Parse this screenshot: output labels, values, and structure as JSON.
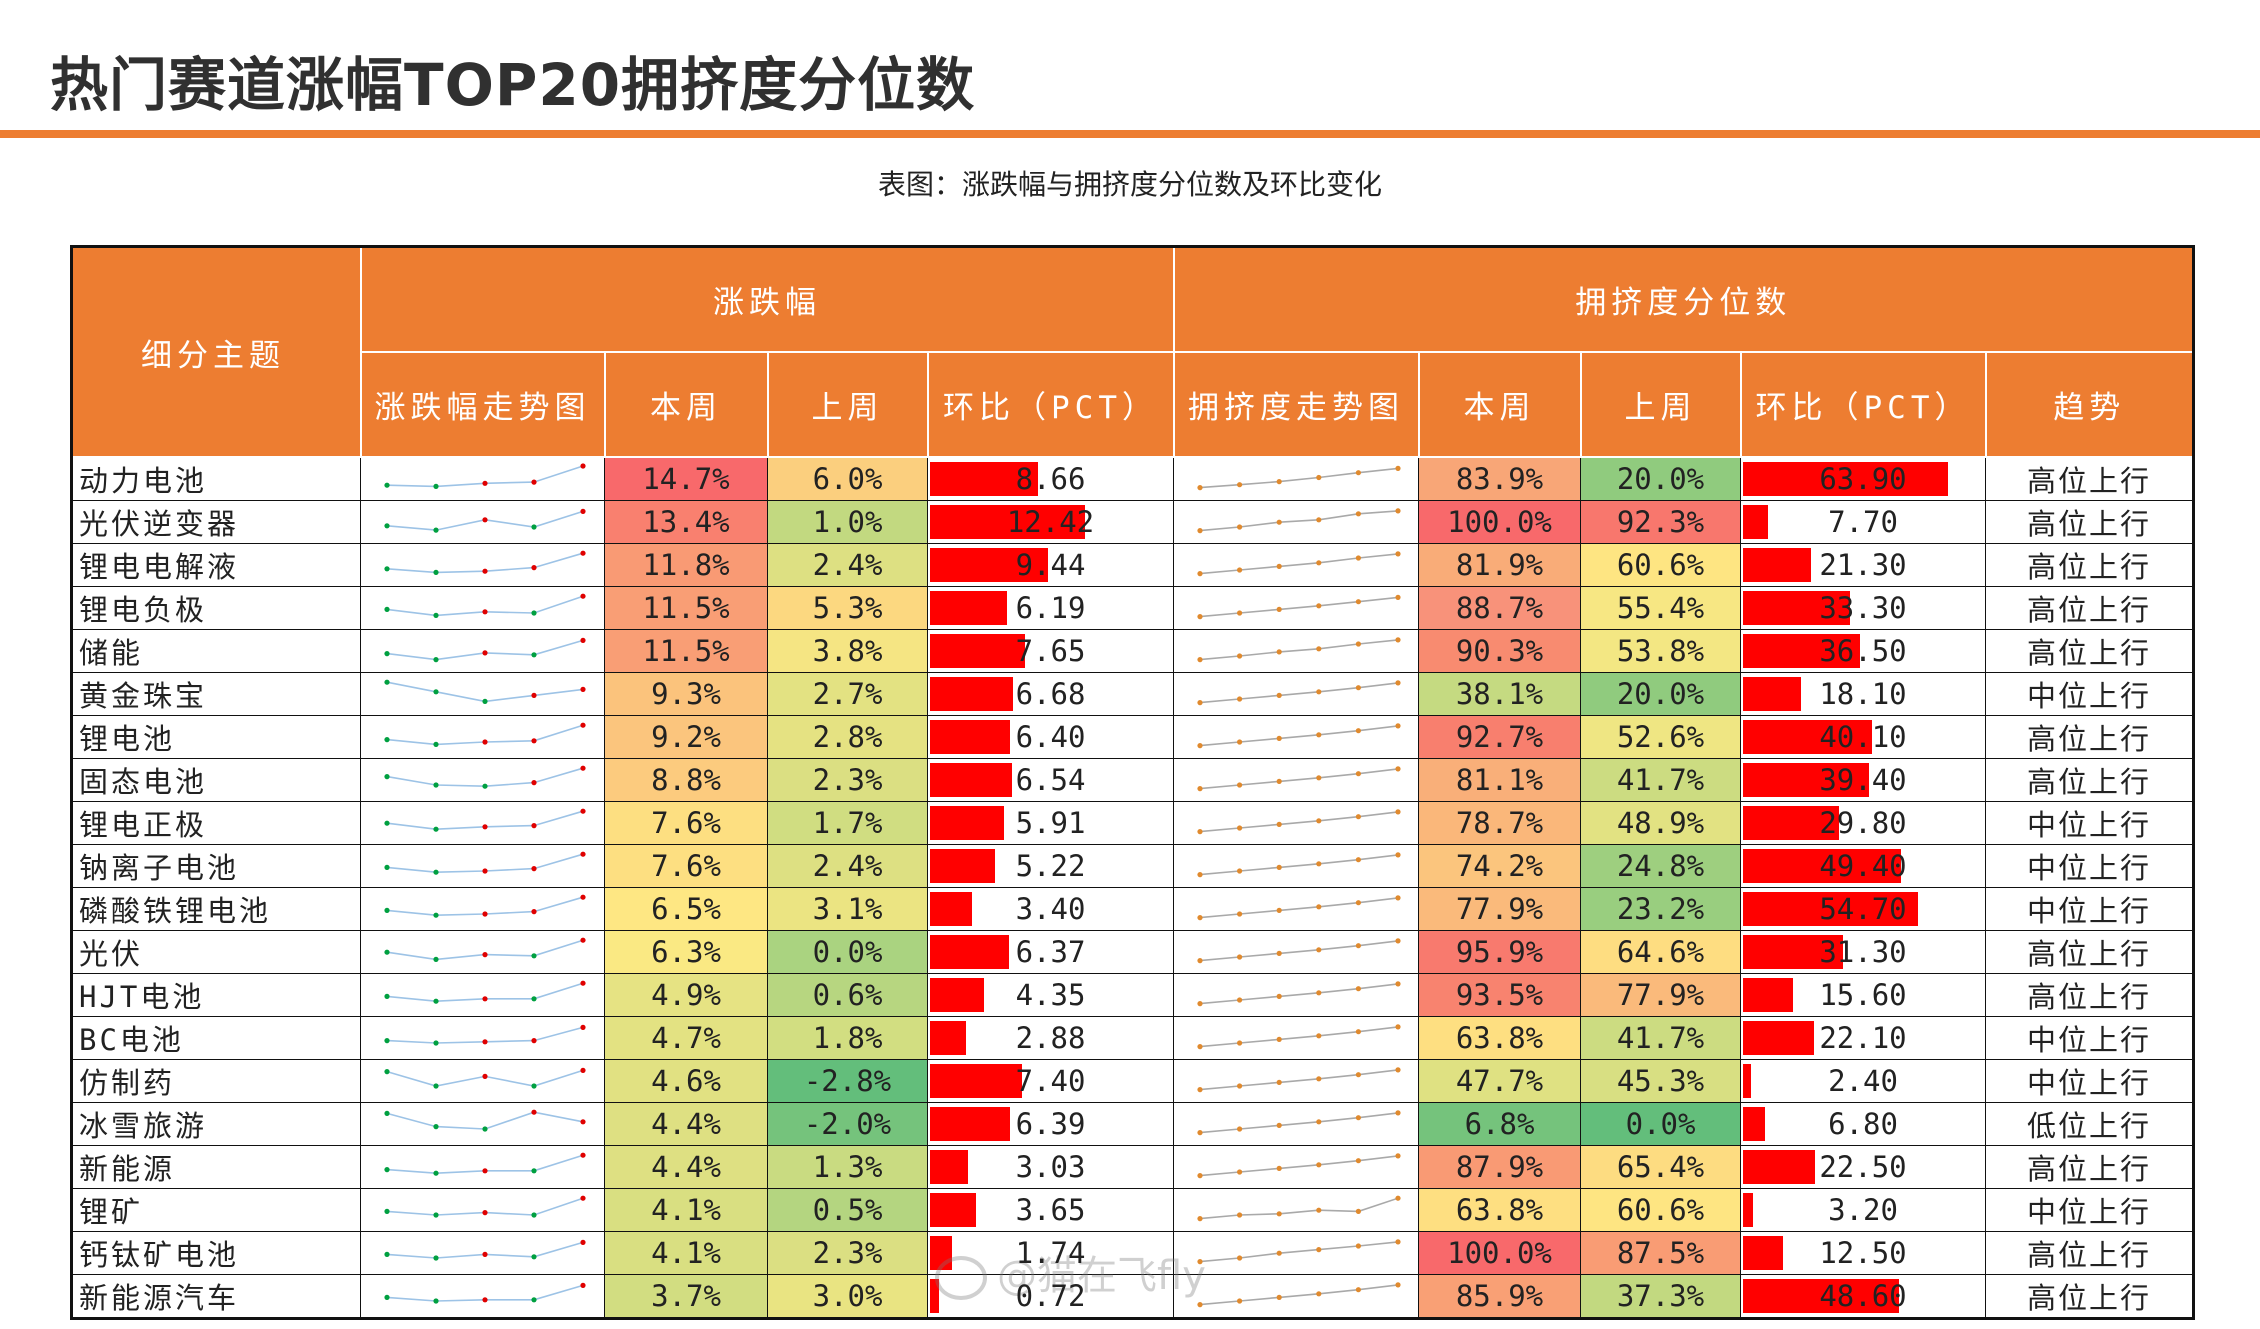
{
  "title": "热门赛道涨幅TOP20拥挤度分位数",
  "caption": "表图：涨跌幅与拥挤度分位数及环比变化",
  "headers": {
    "topic": "细分主题",
    "group_change": "涨跌幅",
    "group_crowd": "拥挤度分位数",
    "change_trend": "涨跌幅走势图",
    "this_week": "本周",
    "last_week": "上周",
    "qoq": "环比（PCT）",
    "crowd_trend": "拥挤度走势图",
    "crowd_this_week": "本周",
    "crowd_last_week": "上周",
    "crowd_qoq": "环比（PCT）",
    "trend": "趋势"
  },
  "rows": [
    {
      "name": "动力电池",
      "chg": "14.7%",
      "chg_prev": "6.0%",
      "chg_qoq": "8.66",
      "crowd": "83.9%",
      "crowd_prev": "20.0%",
      "crowd_qoq": "63.90",
      "trend": "高位上行",
      "chg_bg": "#F8696B",
      "chg_prev_bg": "#FBCF7E",
      "crowd_bg": "#F8A677",
      "crowd_prev_bg": "#90CB7E",
      "chg_qoq_num": 8.66,
      "crowd_qoq_num": 63.9,
      "spark1": [
        0.2,
        0.15,
        0.28,
        0.33,
        1.0
      ],
      "spark2": [
        0.1,
        0.22,
        0.35,
        0.52,
        0.72,
        0.9
      ]
    },
    {
      "name": "光伏逆变器",
      "chg": "13.4%",
      "chg_prev": "1.0%",
      "chg_qoq": "12.42",
      "crowd": "100.0%",
      "crowd_prev": "92.3%",
      "crowd_qoq": "7.70",
      "trend": "高位上行",
      "chg_bg": "#F9806F",
      "chg_prev_bg": "#C2D980",
      "crowd_bg": "#F8696B",
      "crowd_prev_bg": "#F8776D",
      "chg_qoq_num": 12.42,
      "crowd_qoq_num": 7.7,
      "spark1": [
        0.3,
        0.12,
        0.55,
        0.25,
        0.9
      ],
      "spark2": [
        0.1,
        0.25,
        0.45,
        0.55,
        0.8,
        0.92
      ]
    },
    {
      "name": "锂电电解液",
      "chg": "11.8%",
      "chg_prev": "2.4%",
      "chg_qoq": "9.44",
      "crowd": "81.9%",
      "crowd_prev": "60.6%",
      "crowd_qoq": "21.30",
      "trend": "高位上行",
      "chg_bg": "#F99A74",
      "chg_prev_bg": "#DDE082",
      "crowd_bg": "#F9AC78",
      "crowd_prev_bg": "#FEE582",
      "chg_qoq_num": 9.44,
      "crowd_qoq_num": 21.3,
      "spark1": [
        0.3,
        0.15,
        0.2,
        0.35,
        0.95
      ],
      "spark2": [
        0.1,
        0.25,
        0.4,
        0.55,
        0.75,
        0.92
      ]
    },
    {
      "name": "锂电负极",
      "chg": "11.5%",
      "chg_prev": "5.3%",
      "chg_qoq": "6.19",
      "crowd": "88.7%",
      "crowd_prev": "55.4%",
      "crowd_qoq": "33.30",
      "trend": "高位上行",
      "chg_bg": "#F99E75",
      "chg_prev_bg": "#FCD880",
      "crowd_bg": "#F8927A",
      "crowd_prev_bg": "#F7E783",
      "chg_qoq_num": 6.19,
      "crowd_qoq_num": 33.3,
      "spark1": [
        0.4,
        0.15,
        0.3,
        0.25,
        0.95
      ],
      "spark2": [
        0.1,
        0.25,
        0.4,
        0.55,
        0.72,
        0.9
      ]
    },
    {
      "name": "储能",
      "chg": "11.5%",
      "chg_prev": "3.8%",
      "chg_qoq": "7.65",
      "crowd": "90.3%",
      "crowd_prev": "53.8%",
      "crowd_qoq": "36.50",
      "trend": "高位上行",
      "chg_bg": "#F99E75",
      "chg_prev_bg": "#F5E583",
      "crowd_bg": "#F88B70",
      "crowd_prev_bg": "#F3E783",
      "chg_qoq_num": 7.65,
      "crowd_qoq_num": 36.5,
      "spark1": [
        0.35,
        0.1,
        0.38,
        0.3,
        0.9
      ],
      "spark2": [
        0.1,
        0.25,
        0.42,
        0.55,
        0.75,
        0.92
      ]
    },
    {
      "name": "黄金珠宝",
      "chg": "9.3%",
      "chg_prev": "2.7%",
      "chg_qoq": "6.68",
      "crowd": "38.1%",
      "crowd_prev": "20.0%",
      "crowd_qoq": "18.10",
      "trend": "中位上行",
      "chg_bg": "#FBC37C",
      "chg_prev_bg": "#E3E282",
      "crowd_bg": "#C5DA81",
      "crowd_prev_bg": "#90CB7E",
      "chg_qoq_num": 6.68,
      "crowd_qoq_num": 18.1,
      "spark1": [
        0.95,
        0.55,
        0.15,
        0.4,
        0.65
      ],
      "spark2": [
        0.1,
        0.25,
        0.4,
        0.55,
        0.72,
        0.92
      ]
    },
    {
      "name": "锂电池",
      "chg": "9.2%",
      "chg_prev": "2.8%",
      "chg_qoq": "6.40",
      "crowd": "92.7%",
      "crowd_prev": "52.6%",
      "crowd_qoq": "40.10",
      "trend": "高位上行",
      "chg_bg": "#FBC57D",
      "chg_prev_bg": "#E5E282",
      "crowd_bg": "#F87F6E",
      "crowd_prev_bg": "#EFE683",
      "chg_qoq_num": 6.4,
      "crowd_qoq_num": 40.1,
      "spark1": [
        0.35,
        0.15,
        0.25,
        0.3,
        0.95
      ],
      "spark2": [
        0.1,
        0.25,
        0.4,
        0.55,
        0.72,
        0.92
      ]
    },
    {
      "name": "固态电池",
      "chg": "8.8%",
      "chg_prev": "2.3%",
      "chg_qoq": "6.54",
      "crowd": "81.1%",
      "crowd_prev": "41.7%",
      "crowd_qoq": "39.40",
      "trend": "高位上行",
      "chg_bg": "#FCCB7E",
      "chg_prev_bg": "#DBDF82",
      "crowd_bg": "#F9AF79",
      "crowd_prev_bg": "#CCDC81",
      "chg_qoq_num": 6.54,
      "crowd_qoq_num": 39.4,
      "spark1": [
        0.6,
        0.25,
        0.2,
        0.35,
        0.95
      ],
      "spark2": [
        0.1,
        0.25,
        0.4,
        0.55,
        0.72,
        0.92
      ]
    },
    {
      "name": "锂电正极",
      "chg": "7.6%",
      "chg_prev": "1.7%",
      "chg_qoq": "5.91",
      "crowd": "78.7%",
      "crowd_prev": "48.9%",
      "crowd_qoq": "29.80",
      "trend": "中位上行",
      "chg_bg": "#FDDF81",
      "chg_prev_bg": "#D0DD81",
      "crowd_bg": "#FAB77A",
      "crowd_prev_bg": "#E2E282",
      "chg_qoq_num": 5.91,
      "crowd_qoq_num": 29.8,
      "spark1": [
        0.45,
        0.2,
        0.3,
        0.35,
        0.95
      ],
      "spark2": [
        0.1,
        0.25,
        0.4,
        0.55,
        0.72,
        0.92
      ]
    },
    {
      "name": "钠离子电池",
      "chg": "7.6%",
      "chg_prev": "2.4%",
      "chg_qoq": "5.22",
      "crowd": "74.2%",
      "crowd_prev": "24.8%",
      "crowd_qoq": "49.40",
      "trend": "中位上行",
      "chg_bg": "#FDDF81",
      "chg_prev_bg": "#DDE082",
      "crowd_bg": "#FBC57D",
      "crowd_prev_bg": "#9ECF7F",
      "chg_qoq_num": 5.22,
      "crowd_qoq_num": 49.4,
      "spark1": [
        0.4,
        0.2,
        0.25,
        0.35,
        0.95
      ],
      "spark2": [
        0.1,
        0.25,
        0.4,
        0.55,
        0.72,
        0.92
      ]
    },
    {
      "name": "磷酸铁锂电池",
      "chg": "6.5%",
      "chg_prev": "3.1%",
      "chg_qoq": "3.40",
      "crowd": "77.9%",
      "crowd_prev": "23.2%",
      "crowd_qoq": "54.70",
      "trend": "中位上行",
      "chg_bg": "#FEE783",
      "chg_prev_bg": "#EBE482",
      "crowd_bg": "#FABA7B",
      "crowd_prev_bg": "#99CE7F",
      "chg_qoq_num": 3.4,
      "crowd_qoq_num": 54.7,
      "spark1": [
        0.4,
        0.2,
        0.25,
        0.35,
        0.95
      ],
      "spark2": [
        0.1,
        0.25,
        0.4,
        0.55,
        0.72,
        0.92
      ]
    },
    {
      "name": "光伏",
      "chg": "6.3%",
      "chg_prev": "0.0%",
      "chg_qoq": "6.37",
      "crowd": "95.9%",
      "crowd_prev": "64.6%",
      "crowd_qoq": "31.30",
      "trend": "高位上行",
      "chg_bg": "#FAE983",
      "chg_prev_bg": "#AAD380",
      "crowd_bg": "#F87A6E",
      "crowd_prev_bg": "#FEDD81",
      "chg_qoq_num": 6.37,
      "crowd_qoq_num": 31.3,
      "spark1": [
        0.45,
        0.15,
        0.35,
        0.3,
        0.95
      ],
      "spark2": [
        0.1,
        0.25,
        0.4,
        0.55,
        0.72,
        0.92
      ]
    },
    {
      "name": "HJT电池",
      "chg": "4.9%",
      "chg_prev": "0.6%",
      "chg_qoq": "4.35",
      "crowd": "93.5%",
      "crowd_prev": "77.9%",
      "crowd_qoq": "15.60",
      "trend": "高位上行",
      "chg_bg": "#E6E383",
      "chg_prev_bg": "#B7D680",
      "crowd_bg": "#F8836F",
      "crowd_prev_bg": "#FABA7B",
      "chg_qoq_num": 4.35,
      "crowd_qoq_num": 15.6,
      "spark1": [
        0.4,
        0.2,
        0.3,
        0.3,
        0.95
      ],
      "spark2": [
        0.1,
        0.25,
        0.4,
        0.55,
        0.72,
        0.92
      ]
    },
    {
      "name": "BC电池",
      "chg": "4.7%",
      "chg_prev": "1.8%",
      "chg_qoq": "2.88",
      "crowd": "63.8%",
      "crowd_prev": "41.7%",
      "crowd_qoq": "22.10",
      "trend": "中位上行",
      "chg_bg": "#E3E282",
      "chg_prev_bg": "#D2DE81",
      "crowd_bg": "#FEDF81",
      "crowd_prev_bg": "#CCDC81",
      "chg_qoq_num": 2.88,
      "crowd_qoq_num": 22.1,
      "spark1": [
        0.35,
        0.25,
        0.3,
        0.35,
        0.9
      ],
      "spark2": [
        0.1,
        0.25,
        0.4,
        0.55,
        0.72,
        0.92
      ]
    },
    {
      "name": "仿制药",
      "chg": "4.6%",
      "chg_prev": "-2.8%",
      "chg_qoq": "7.40",
      "crowd": "47.7%",
      "crowd_prev": "45.3%",
      "crowd_qoq": "2.40",
      "trend": "中位上行",
      "chg_bg": "#E1E182",
      "chg_prev_bg": "#63BE7B",
      "crowd_bg": "#DFE182",
      "crowd_prev_bg": "#D8DF82",
      "chg_qoq_num": 7.4,
      "crowd_qoq_num": 2.4,
      "spark1": [
        0.85,
        0.25,
        0.65,
        0.25,
        0.9
      ],
      "spark2": [
        0.1,
        0.25,
        0.4,
        0.55,
        0.72,
        0.92
      ]
    },
    {
      "name": "冰雪旅游",
      "chg": "4.4%",
      "chg_prev": "-2.0%",
      "chg_qoq": "6.39",
      "crowd": "6.8%",
      "crowd_prev": "0.0%",
      "crowd_qoq": "6.80",
      "trend": "低位上行",
      "chg_bg": "#DEE082",
      "chg_prev_bg": "#75C37C",
      "crowd_bg": "#75C37C",
      "crowd_prev_bg": "#63BE7B",
      "chg_qoq_num": 6.39,
      "crowd_qoq_num": 6.8,
      "spark1": [
        0.9,
        0.35,
        0.25,
        0.95,
        0.55
      ],
      "spark2": [
        0.1,
        0.25,
        0.4,
        0.55,
        0.72,
        0.92
      ]
    },
    {
      "name": "新能源",
      "chg": "4.4%",
      "chg_prev": "1.3%",
      "chg_qoq": "3.03",
      "crowd": "87.9%",
      "crowd_prev": "65.4%",
      "crowd_qoq": "22.50",
      "trend": "高位上行",
      "chg_bg": "#DEE082",
      "chg_prev_bg": "#C9DB81",
      "crowd_bg": "#F99A74",
      "crowd_prev_bg": "#FDDC81",
      "chg_qoq_num": 3.03,
      "crowd_qoq_num": 22.5,
      "spark1": [
        0.35,
        0.2,
        0.3,
        0.3,
        0.95
      ],
      "spark2": [
        0.1,
        0.25,
        0.4,
        0.55,
        0.72,
        0.92
      ]
    },
    {
      "name": "锂矿",
      "chg": "4.1%",
      "chg_prev": "0.5%",
      "chg_qoq": "3.65",
      "crowd": "63.8%",
      "crowd_prev": "60.6%",
      "crowd_qoq": "3.20",
      "trend": "中位上行",
      "chg_bg": "#D9DF81",
      "chg_prev_bg": "#B4D580",
      "crowd_bg": "#FEDF81",
      "crowd_prev_bg": "#FEE582",
      "chg_qoq_num": 3.65,
      "crowd_qoq_num": 3.2,
      "spark1": [
        0.4,
        0.25,
        0.35,
        0.25,
        0.95
      ],
      "spark2": [
        0.1,
        0.25,
        0.3,
        0.45,
        0.4,
        0.95
      ]
    },
    {
      "name": "钙钛矿电池",
      "chg": "4.1%",
      "chg_prev": "2.3%",
      "chg_qoq": "1.74",
      "crowd": "100.0%",
      "crowd_prev": "87.5%",
      "crowd_qoq": "12.50",
      "trend": "高位上行",
      "chg_bg": "#D9DF81",
      "chg_prev_bg": "#DBDF82",
      "crowd_bg": "#F8696B",
      "crowd_prev_bg": "#F99C74",
      "chg_qoq_num": 1.74,
      "crowd_qoq_num": 12.5,
      "spark1": [
        0.4,
        0.25,
        0.4,
        0.3,
        0.9
      ],
      "spark2": [
        0.1,
        0.25,
        0.45,
        0.6,
        0.75,
        0.92
      ]
    },
    {
      "name": "新能源汽车",
      "chg": "3.7%",
      "chg_prev": "3.0%",
      "chg_qoq": "0.72",
      "crowd": "85.9%",
      "crowd_prev": "37.3%",
      "crowd_qoq": "48.60",
      "trend": "高位上行",
      "chg_bg": "#D2DD81",
      "chg_prev_bg": "#E9E482",
      "crowd_bg": "#F9A075",
      "crowd_prev_bg": "#C2D980",
      "chg_qoq_num": 0.72,
      "crowd_qoq_num": 48.6,
      "spark1": [
        0.4,
        0.25,
        0.3,
        0.3,
        0.9
      ],
      "spark2": [
        0.1,
        0.25,
        0.4,
        0.55,
        0.72,
        0.92
      ]
    }
  ],
  "colors": {
    "accent": "#ED7D31",
    "bar": "#FF0000",
    "spark1_line": "#9DC3E6",
    "spark1_dot_up": "#E00000",
    "spark1_dot_down": "#00A040",
    "spark2_line": "#A9A9A9",
    "spark2_dot": "#E08A2E"
  },
  "watermark": "@猫在飞fly"
}
